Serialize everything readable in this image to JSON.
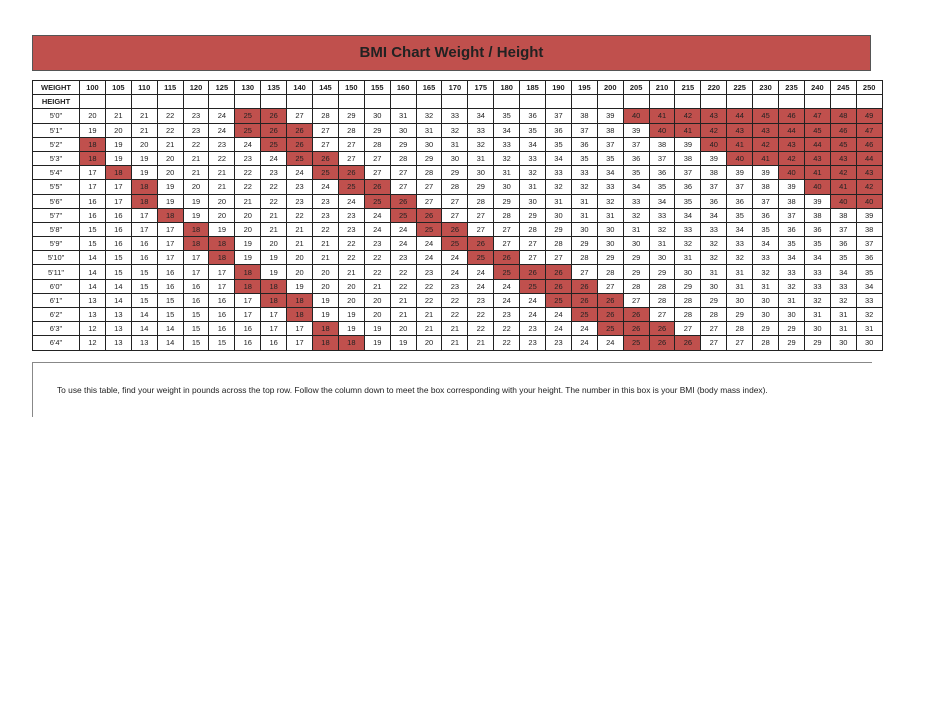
{
  "title": "BMI Chart Weight / Height",
  "table": {
    "header": [
      "WEIGHT",
      100,
      105,
      110,
      115,
      120,
      125,
      130,
      135,
      140,
      145,
      150,
      155,
      160,
      165,
      170,
      175,
      180,
      185,
      190,
      195,
      200,
      205,
      210,
      215,
      220,
      225,
      230,
      235,
      240,
      245,
      250
    ],
    "subheader": "HEIGHT",
    "highlight": {
      "color": "#c0504d",
      "values": [
        18,
        25,
        26
      ],
      "min": 40
    },
    "rows": [
      {
        "height": "5'0\"",
        "values": [
          20,
          21,
          21,
          22,
          23,
          24,
          25,
          26,
          27,
          28,
          29,
          30,
          31,
          32,
          33,
          34,
          35,
          36,
          37,
          38,
          39,
          40,
          41,
          42,
          43,
          44,
          45,
          46,
          47,
          48,
          49
        ]
      },
      {
        "height": "5'1\"",
        "values": [
          19,
          20,
          21,
          22,
          23,
          24,
          25,
          26,
          26,
          27,
          28,
          29,
          30,
          31,
          32,
          33,
          34,
          35,
          36,
          37,
          38,
          39,
          40,
          41,
          42,
          43,
          43,
          44,
          45,
          46,
          47
        ]
      },
      {
        "height": "5'2\"",
        "values": [
          18,
          19,
          20,
          21,
          22,
          23,
          24,
          25,
          26,
          27,
          27,
          28,
          29,
          30,
          31,
          32,
          33,
          34,
          35,
          36,
          37,
          37,
          38,
          39,
          40,
          41,
          42,
          43,
          44,
          45,
          46
        ]
      },
      {
        "height": "5'3\"",
        "values": [
          18,
          19,
          19,
          20,
          21,
          22,
          23,
          24,
          25,
          26,
          27,
          27,
          28,
          29,
          30,
          31,
          32,
          33,
          34,
          35,
          35,
          36,
          37,
          38,
          39,
          40,
          41,
          42,
          43,
          43,
          44
        ]
      },
      {
        "height": "5'4\"",
        "values": [
          17,
          18,
          19,
          20,
          21,
          21,
          22,
          23,
          24,
          25,
          26,
          27,
          27,
          28,
          29,
          30,
          31,
          32,
          33,
          33,
          34,
          35,
          36,
          37,
          38,
          39,
          39,
          40,
          41,
          42,
          43
        ]
      },
      {
        "height": "5'5\"",
        "values": [
          17,
          17,
          18,
          19,
          20,
          21,
          22,
          22,
          23,
          24,
          25,
          26,
          27,
          27,
          28,
          29,
          30,
          31,
          32,
          32,
          33,
          34,
          35,
          36,
          37,
          37,
          38,
          39,
          40,
          41,
          42
        ]
      },
      {
        "height": "5'6\"",
        "values": [
          16,
          17,
          18,
          19,
          19,
          20,
          21,
          22,
          23,
          23,
          24,
          25,
          26,
          27,
          27,
          28,
          29,
          30,
          31,
          31,
          32,
          33,
          34,
          35,
          36,
          36,
          37,
          38,
          39,
          40,
          40
        ]
      },
      {
        "height": "5'7\"",
        "values": [
          16,
          16,
          17,
          18,
          19,
          20,
          20,
          21,
          22,
          23,
          23,
          24,
          25,
          26,
          27,
          27,
          28,
          29,
          30,
          31,
          31,
          32,
          33,
          34,
          34,
          35,
          36,
          37,
          38,
          38,
          39
        ]
      },
      {
        "height": "5'8\"",
        "values": [
          15,
          16,
          17,
          17,
          18,
          19,
          20,
          21,
          21,
          22,
          23,
          24,
          24,
          25,
          26,
          27,
          27,
          28,
          29,
          30,
          30,
          31,
          32,
          33,
          33,
          34,
          35,
          36,
          36,
          37,
          38
        ]
      },
      {
        "height": "5'9\"",
        "values": [
          15,
          16,
          16,
          17,
          18,
          18,
          19,
          20,
          21,
          21,
          22,
          23,
          24,
          24,
          25,
          26,
          27,
          27,
          28,
          29,
          30,
          30,
          31,
          32,
          32,
          33,
          34,
          35,
          35,
          36,
          37
        ]
      },
      {
        "height": "5'10\"",
        "values": [
          14,
          15,
          16,
          17,
          17,
          18,
          19,
          19,
          20,
          21,
          22,
          22,
          23,
          24,
          24,
          25,
          26,
          27,
          27,
          28,
          29,
          29,
          30,
          31,
          32,
          32,
          33,
          34,
          34,
          35,
          36
        ]
      },
      {
        "height": "5'11\"",
        "values": [
          14,
          15,
          15,
          16,
          17,
          17,
          18,
          19,
          20,
          20,
          21,
          22,
          22,
          23,
          24,
          24,
          25,
          26,
          26,
          27,
          28,
          29,
          29,
          30,
          31,
          31,
          32,
          33,
          33,
          34,
          35
        ]
      },
      {
        "height": "6'0\"",
        "values": [
          14,
          14,
          15,
          16,
          16,
          17,
          18,
          18,
          19,
          20,
          20,
          21,
          22,
          22,
          23,
          24,
          24,
          25,
          26,
          26,
          27,
          28,
          28,
          29,
          30,
          31,
          31,
          32,
          33,
          33,
          34
        ]
      },
      {
        "height": "6'1\"",
        "values": [
          13,
          14,
          15,
          15,
          16,
          16,
          17,
          18,
          18,
          19,
          20,
          20,
          21,
          22,
          22,
          23,
          24,
          24,
          25,
          26,
          26,
          27,
          28,
          28,
          29,
          30,
          30,
          31,
          32,
          32,
          33
        ]
      },
      {
        "height": "6'2\"",
        "values": [
          13,
          13,
          14,
          15,
          15,
          16,
          17,
          17,
          18,
          19,
          19,
          20,
          21,
          21,
          22,
          22,
          23,
          24,
          24,
          25,
          26,
          26,
          27,
          28,
          28,
          29,
          30,
          30,
          31,
          31,
          32
        ]
      },
      {
        "height": "6'3\"",
        "values": [
          12,
          13,
          14,
          14,
          15,
          16,
          16,
          17,
          17,
          18,
          19,
          19,
          20,
          21,
          21,
          22,
          22,
          23,
          24,
          24,
          25,
          26,
          26,
          27,
          27,
          28,
          29,
          29,
          30,
          31,
          31
        ]
      },
      {
        "height": "6'4\"",
        "values": [
          12,
          13,
          13,
          14,
          15,
          15,
          16,
          16,
          17,
          18,
          18,
          19,
          19,
          20,
          21,
          21,
          22,
          23,
          23,
          24,
          24,
          25,
          26,
          26,
          27,
          27,
          28,
          29,
          29,
          30,
          30
        ]
      }
    ]
  },
  "note": "To use this table, find your weight in pounds across the top row. Follow the column down to meet the box corresponding with your height. The number in this box is your BMI (body mass index)."
}
